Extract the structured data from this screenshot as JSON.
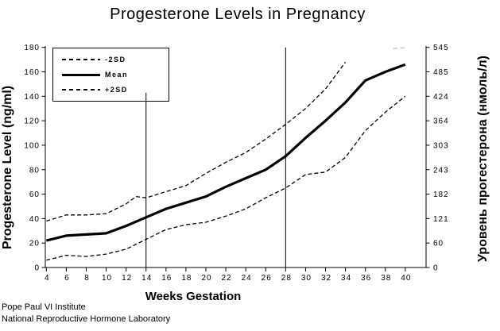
{
  "footer": {
    "line1": "Pope Paul VI Institute",
    "line2": "National Reproductive Hormone Laboratory"
  },
  "chart_data": {
    "type": "line",
    "title": "Progesterone Levels in Pregnancy",
    "xlabel": "Weeks Gestation",
    "ylabel_left": "Progesterone Level (ng/ml)",
    "ylabel_right": "Уровень прогестерона (нмоль/л)",
    "xlim": [
      4,
      42.2
    ],
    "ylim_left": [
      0,
      180
    ],
    "ylim_right": [
      0,
      545
    ],
    "grid": false,
    "legend_position": "top-left",
    "x_ticks": [
      4,
      6,
      8,
      10,
      12,
      14,
      16,
      18,
      20,
      22,
      24,
      26,
      28,
      30,
      32,
      34,
      36,
      38,
      40
    ],
    "y_ticks_left": [
      0,
      20,
      40,
      60,
      80,
      100,
      120,
      140,
      160,
      180
    ],
    "y_ticks_right": [
      0,
      60,
      121,
      182,
      243,
      303,
      364,
      424,
      485,
      545
    ],
    "legend": [
      {
        "label": "-2SD",
        "style": "dashed"
      },
      {
        "label": "Mean",
        "style": "solid"
      },
      {
        "label": "+2SD",
        "style": "dashed"
      }
    ],
    "trimester_lines": [
      {
        "week": 14,
        "top_value": 143
      },
      {
        "week": 28,
        "top_value": 180
      }
    ],
    "colors": {
      "line": "#000000",
      "background": "#ffffff",
      "clipped_gray": "#c4c4c4"
    },
    "series": [
      {
        "name": "-2SD",
        "style": "dashed",
        "x": [
          4,
          6,
          8,
          10,
          12,
          14,
          16,
          18,
          20,
          22,
          24,
          26,
          28,
          30,
          32,
          34,
          36,
          38,
          40
        ],
        "y": [
          6,
          10,
          9,
          11,
          15,
          23,
          31,
          35,
          37,
          42,
          48,
          57,
          65,
          76,
          78,
          90,
          112,
          127,
          140
        ]
      },
      {
        "name": "Mean",
        "style": "solid",
        "x": [
          4,
          6,
          8,
          10,
          12,
          14,
          16,
          18,
          20,
          22,
          24,
          26,
          28,
          30,
          32,
          34,
          36,
          38,
          40
        ],
        "y": [
          22,
          26,
          27,
          28,
          34,
          41,
          48,
          53,
          58,
          66,
          73,
          80,
          91,
          106,
          120,
          135,
          153,
          160,
          166
        ]
      },
      {
        "name": "+2SD",
        "style": "dashed",
        "x": [
          4,
          6,
          8,
          10,
          12,
          13,
          14,
          16,
          18,
          20,
          22,
          24,
          26,
          28,
          30,
          32,
          34
        ],
        "y": [
          38,
          43,
          43,
          44,
          52,
          58,
          57,
          62,
          67,
          77,
          86,
          94,
          105,
          117,
          130,
          146,
          168
        ]
      },
      {
        "name": "+2SD-clipped",
        "style": "faint",
        "x": [
          38.8,
          40.2
        ],
        "y": [
          179,
          180
        ]
      }
    ]
  }
}
